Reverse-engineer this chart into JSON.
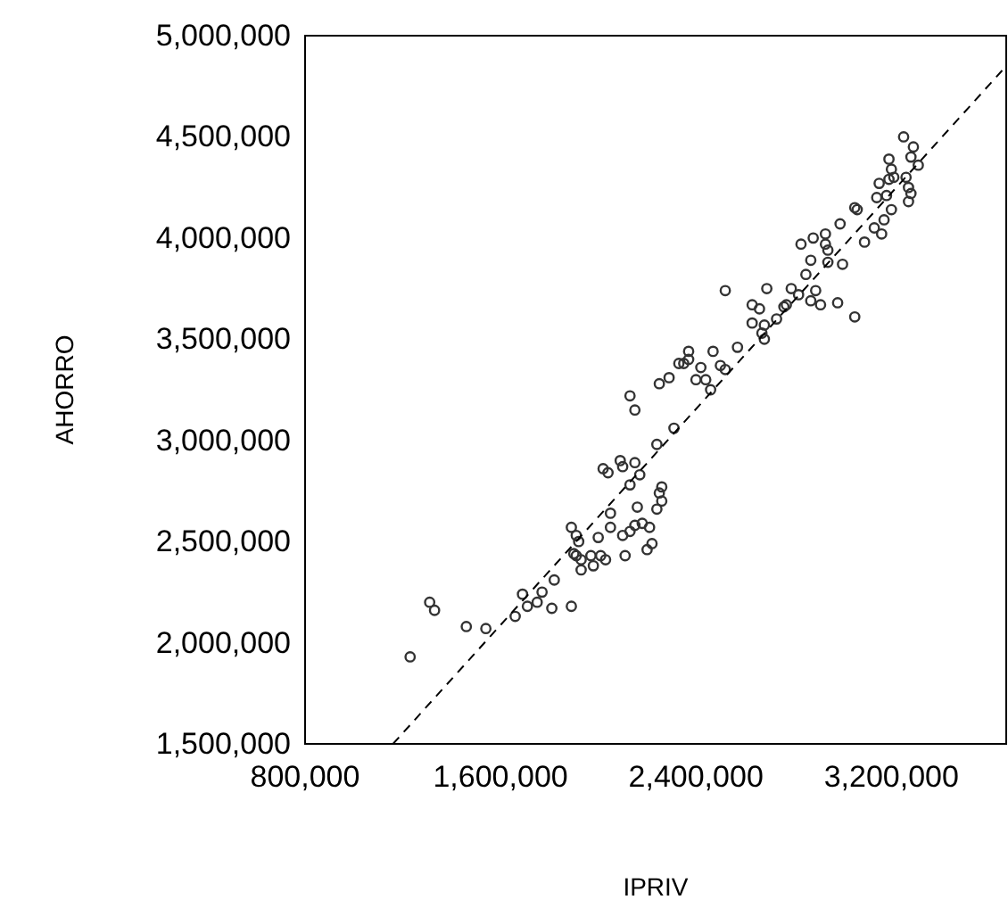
{
  "chart_data": {
    "type": "scatter",
    "xlabel": "IPRIV",
    "ylabel": "AHORRO",
    "xlim": [
      800000,
      3670000
    ],
    "xticks": [
      {
        "value": 800000,
        "label": "800,000"
      },
      {
        "value": 1600000,
        "label": "1,600,000"
      },
      {
        "value": 2400000,
        "label": "2,400,000"
      },
      {
        "value": 3200000,
        "label": "3,200,000"
      }
    ],
    "ylim": [
      1500000,
      5000000
    ],
    "yticks": [
      {
        "value": 1500000,
        "label": "1,500,000"
      },
      {
        "value": 2000000,
        "label": "2,000,000"
      },
      {
        "value": 2500000,
        "label": "2,500,000"
      },
      {
        "value": 3000000,
        "label": "3,000,000"
      },
      {
        "value": 3500000,
        "label": "3,500,000"
      },
      {
        "value": 4000000,
        "label": "4,000,000"
      },
      {
        "value": 4500000,
        "label": "4,500,000"
      },
      {
        "value": 5000000,
        "label": "5,000,000"
      }
    ],
    "grid": false,
    "series": [
      {
        "type": "scatter",
        "color": "#333333",
        "marker": "circle",
        "x": [
          1230000,
          1310000,
          1330000,
          1460000,
          1540000,
          1660000,
          1690000,
          1710000,
          1750000,
          1770000,
          1810000,
          1820000,
          1890000,
          1890000,
          1910000,
          1920000,
          1900000,
          1910000,
          1930000,
          1930000,
          1970000,
          1980000,
          2010000,
          2030000,
          2000000,
          2050000,
          2050000,
          2110000,
          2100000,
          2130000,
          2150000,
          2180000,
          2160000,
          2210000,
          2220000,
          2200000,
          2240000,
          2250000,
          2260000,
          2260000,
          2130000,
          2170000,
          2100000,
          2090000,
          2150000,
          2020000,
          2040000,
          2240000,
          2310000,
          2130000,
          2150000,
          2250000,
          2290000,
          2330000,
          2350000,
          2370000,
          2370000,
          2400000,
          2420000,
          2440000,
          2460000,
          2470000,
          2500000,
          2520000,
          2570000,
          2520000,
          2630000,
          2660000,
          2690000,
          2630000,
          2680000,
          2670000,
          2680000,
          2730000,
          2760000,
          2770000,
          2790000,
          2820000,
          2850000,
          2870000,
          2890000,
          2870000,
          2910000,
          2980000,
          3050000,
          3000000,
          2940000,
          2830000,
          2880000,
          2930000,
          2930000,
          2940000,
          2990000,
          3050000,
          3060000,
          3090000,
          3130000,
          3160000,
          3170000,
          3200000,
          3140000,
          3180000,
          3150000,
          3190000,
          3200000,
          3190000,
          3210000,
          3250000,
          3290000,
          3280000,
          3310000,
          3260000,
          3270000,
          3280000,
          3270000
        ],
        "values": [
          1930000,
          2200000,
          2160000,
          2080000,
          2070000,
          2130000,
          2240000,
          2180000,
          2200000,
          2250000,
          2170000,
          2310000,
          2180000,
          2570000,
          2530000,
          2500000,
          2440000,
          2430000,
          2410000,
          2360000,
          2430000,
          2380000,
          2430000,
          2410000,
          2520000,
          2570000,
          2640000,
          2430000,
          2530000,
          2550000,
          2580000,
          2590000,
          2670000,
          2570000,
          2490000,
          2460000,
          2660000,
          2740000,
          2700000,
          2770000,
          2780000,
          2830000,
          2870000,
          2900000,
          2890000,
          2860000,
          2840000,
          2980000,
          3060000,
          3220000,
          3150000,
          3280000,
          3310000,
          3380000,
          3380000,
          3440000,
          3400000,
          3300000,
          3360000,
          3300000,
          3250000,
          3440000,
          3370000,
          3350000,
          3460000,
          3740000,
          3670000,
          3650000,
          3750000,
          3580000,
          3570000,
          3530000,
          3500000,
          3600000,
          3660000,
          3670000,
          3750000,
          3720000,
          3820000,
          3890000,
          3740000,
          3690000,
          3670000,
          3680000,
          3610000,
          3870000,
          3880000,
          3970000,
          4000000,
          3970000,
          4020000,
          3940000,
          4070000,
          4150000,
          4140000,
          3980000,
          4050000,
          4020000,
          4090000,
          4140000,
          4200000,
          4210000,
          4270000,
          4290000,
          4340000,
          4390000,
          4300000,
          4500000,
          4450000,
          4400000,
          4360000,
          4300000,
          4250000,
          4220000,
          4180000
        ]
      },
      {
        "type": "line",
        "color": "#000000",
        "line_style": "dashed",
        "x": [
          1160000,
          3670000
        ],
        "values": [
          1500000,
          4850000
        ]
      }
    ]
  }
}
